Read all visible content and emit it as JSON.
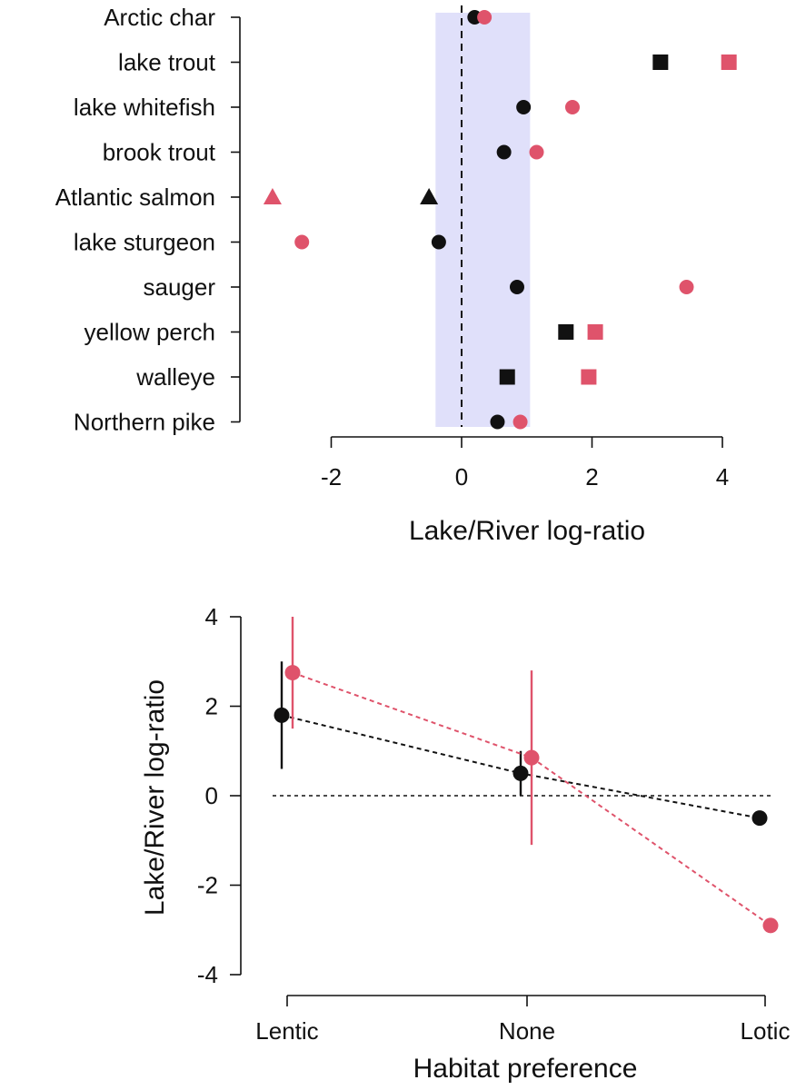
{
  "colors": {
    "black": "#111111",
    "pink": "#df536b",
    "band": "#e0e0fa"
  },
  "chart_data": [
    {
      "type": "scatter",
      "orientation": "horizontal-dot",
      "categories": [
        "Arctic char",
        "lake trout",
        "lake whitefish",
        "brook trout",
        "Atlantic salmon",
        "lake sturgeon",
        "sauger",
        "yellow perch",
        "walleye",
        "Northern pike"
      ],
      "series": [
        {
          "color": "black",
          "points": [
            {
              "category": "Arctic char",
              "value": 0.2,
              "shape": "circle"
            },
            {
              "category": "lake trout",
              "value": 3.05,
              "shape": "square"
            },
            {
              "category": "lake whitefish",
              "value": 0.95,
              "shape": "circle"
            },
            {
              "category": "brook trout",
              "value": 0.65,
              "shape": "circle"
            },
            {
              "category": "Atlantic salmon",
              "value": -0.5,
              "shape": "triangle"
            },
            {
              "category": "lake sturgeon",
              "value": -0.35,
              "shape": "circle"
            },
            {
              "category": "sauger",
              "value": 0.85,
              "shape": "circle"
            },
            {
              "category": "yellow perch",
              "value": 1.6,
              "shape": "square"
            },
            {
              "category": "walleye",
              "value": 0.7,
              "shape": "square"
            },
            {
              "category": "Northern pike",
              "value": 0.55,
              "shape": "circle"
            }
          ]
        },
        {
          "color": "pink",
          "points": [
            {
              "category": "Arctic char",
              "value": 0.35,
              "shape": "circle"
            },
            {
              "category": "lake trout",
              "value": 4.1,
              "shape": "square"
            },
            {
              "category": "lake whitefish",
              "value": 1.7,
              "shape": "circle"
            },
            {
              "category": "brook trout",
              "value": 1.15,
              "shape": "circle"
            },
            {
              "category": "Atlantic salmon",
              "value": -2.9,
              "shape": "triangle"
            },
            {
              "category": "lake sturgeon",
              "value": -2.45,
              "shape": "circle"
            },
            {
              "category": "sauger",
              "value": 3.45,
              "shape": "circle"
            },
            {
              "category": "yellow perch",
              "value": 2.05,
              "shape": "square"
            },
            {
              "category": "walleye",
              "value": 1.95,
              "shape": "square"
            },
            {
              "category": "Northern pike",
              "value": 0.9,
              "shape": "circle"
            }
          ]
        }
      ],
      "reference_line": 0,
      "shaded_band": [
        -0.4,
        1.05
      ],
      "xlim": [
        -3.05,
        4.25
      ],
      "xticks": [
        "-2",
        "0",
        "2",
        "4"
      ],
      "xtick_values": [
        -2,
        0,
        2,
        4
      ],
      "xlabel": "Lake/River log-ratio"
    },
    {
      "type": "line",
      "categories": [
        "Lentic",
        "None",
        "Lotic"
      ],
      "series": [
        {
          "color": "black",
          "values": [
            1.8,
            0.5,
            -0.5
          ],
          "error_low": [
            0.6,
            0.0,
            null
          ],
          "error_high": [
            3.0,
            1.0,
            null
          ]
        },
        {
          "color": "pink",
          "values": [
            2.75,
            0.85,
            -2.9
          ],
          "error_low": [
            1.5,
            -1.1,
            null
          ],
          "error_high": [
            4.0,
            2.8,
            null
          ]
        }
      ],
      "reference_line": 0,
      "ylim": [
        -4,
        4
      ],
      "yticks": [
        "-4",
        "-2",
        "0",
        "2",
        "4"
      ],
      "ytick_values": [
        -4,
        -2,
        0,
        2,
        4
      ],
      "xlabel": "Habitat preference",
      "ylabel": "Lake/River log-ratio"
    }
  ]
}
